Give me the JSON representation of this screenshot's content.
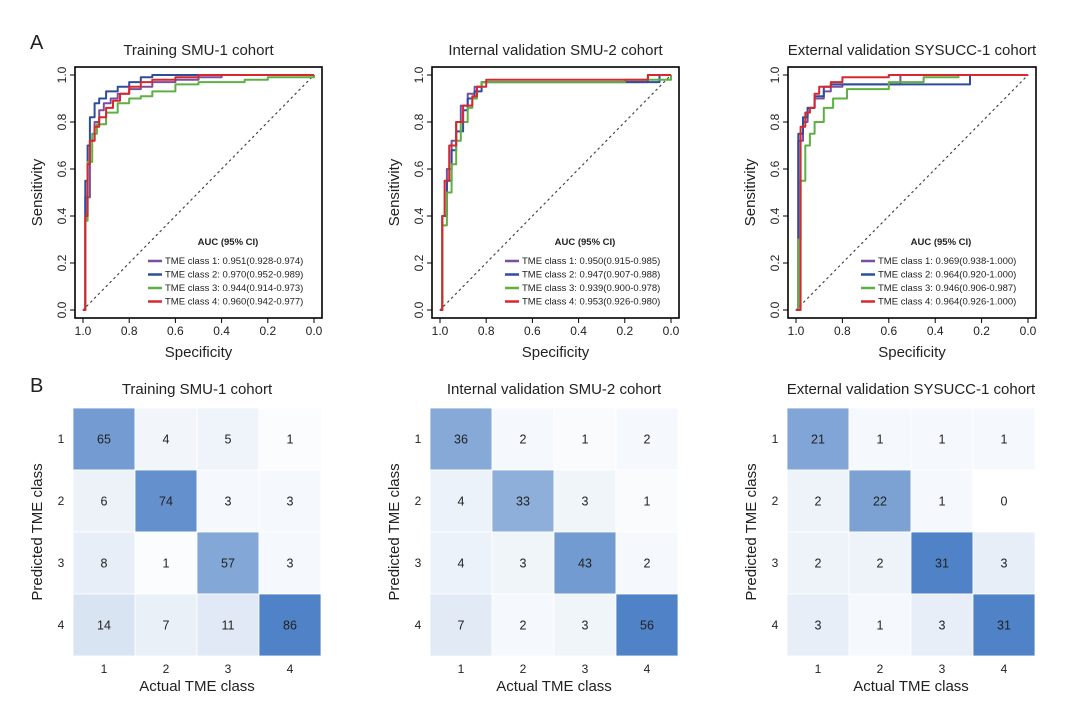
{
  "panel_labels": [
    "A",
    "B"
  ],
  "colors": {
    "class1": "#7b4f9d",
    "class2": "#2e4d9c",
    "class3": "#5fb043",
    "class4": "#d7282f",
    "diag": "#444444",
    "heat_low": "#ffffff",
    "heat_high": "#4f82c6"
  },
  "chart_data": [
    {
      "type": "line",
      "title": "Training SMU-1 cohort",
      "xlabel": "Specificity",
      "ylabel": "Sensitivity",
      "xlim": [
        1.0,
        0.0
      ],
      "ylim": [
        0.0,
        1.0
      ],
      "xticks": [
        "1.0",
        "0.8",
        "0.6",
        "0.4",
        "0.2",
        "0.0"
      ],
      "yticks": [
        "0.0",
        "0.2",
        "0.4",
        "0.6",
        "0.8",
        "1.0"
      ],
      "legend_title": "AUC (95% CI)",
      "series": [
        {
          "name": "TME class 1: 0.951(0.928-0.974)",
          "points": [
            [
              1,
              0
            ],
            [
              0.99,
              0.48
            ],
            [
              0.97,
              0.72
            ],
            [
              0.95,
              0.8
            ],
            [
              0.93,
              0.85
            ],
            [
              0.91,
              0.88
            ],
            [
              0.88,
              0.9
            ],
            [
              0.85,
              0.92
            ],
            [
              0.8,
              0.94
            ],
            [
              0.75,
              0.95
            ],
            [
              0.7,
              0.97
            ],
            [
              0.6,
              0.98
            ],
            [
              0.5,
              0.99
            ],
            [
              0.4,
              1
            ],
            [
              0.2,
              1
            ],
            [
              0,
              1
            ]
          ]
        },
        {
          "name": "TME class 2: 0.970(0.952-0.989)",
          "points": [
            [
              1,
              0
            ],
            [
              0.99,
              0.55
            ],
            [
              0.98,
              0.7
            ],
            [
              0.97,
              0.82
            ],
            [
              0.95,
              0.88
            ],
            [
              0.93,
              0.9
            ],
            [
              0.9,
              0.93
            ],
            [
              0.85,
              0.95
            ],
            [
              0.8,
              0.97
            ],
            [
              0.75,
              0.99
            ],
            [
              0.7,
              1
            ],
            [
              0.4,
              1
            ],
            [
              0,
              1
            ]
          ]
        },
        {
          "name": "TME class 3: 0.944(0.914-0.973)",
          "points": [
            [
              1,
              0
            ],
            [
              0.99,
              0.38
            ],
            [
              0.98,
              0.63
            ],
            [
              0.96,
              0.75
            ],
            [
              0.94,
              0.79
            ],
            [
              0.9,
              0.84
            ],
            [
              0.85,
              0.88
            ],
            [
              0.8,
              0.9
            ],
            [
              0.75,
              0.91
            ],
            [
              0.7,
              0.93
            ],
            [
              0.6,
              0.96
            ],
            [
              0.5,
              0.97
            ],
            [
              0.3,
              0.98
            ],
            [
              0.2,
              0.99
            ],
            [
              0,
              1
            ]
          ]
        },
        {
          "name": "TME class 4: 0.960(0.942-0.977)",
          "points": [
            [
              1,
              0
            ],
            [
              0.99,
              0.4
            ],
            [
              0.98,
              0.62
            ],
            [
              0.97,
              0.72
            ],
            [
              0.95,
              0.78
            ],
            [
              0.93,
              0.82
            ],
            [
              0.9,
              0.86
            ],
            [
              0.87,
              0.89
            ],
            [
              0.84,
              0.92
            ],
            [
              0.8,
              0.95
            ],
            [
              0.75,
              0.97
            ],
            [
              0.7,
              0.98
            ],
            [
              0.6,
              0.99
            ],
            [
              0.5,
              1
            ],
            [
              0,
              1
            ]
          ]
        }
      ]
    },
    {
      "type": "line",
      "title": "Internal validation SMU-2 cohort",
      "xlabel": "Specificity",
      "ylabel": "Sensitivity",
      "xlim": [
        1.0,
        0.0
      ],
      "ylim": [
        0.0,
        1.0
      ],
      "xticks": [
        "1.0",
        "0.8",
        "0.6",
        "0.4",
        "0.2",
        "0.0"
      ],
      "yticks": [
        "0.0",
        "0.2",
        "0.4",
        "0.6",
        "0.8",
        "1.0"
      ],
      "legend_title": "AUC (95% CI)",
      "series": [
        {
          "name": "TME class 1: 0.950(0.915-0.985)",
          "points": [
            [
              1,
              0
            ],
            [
              0.99,
              0.4
            ],
            [
              0.97,
              0.6
            ],
            [
              0.95,
              0.72
            ],
            [
              0.93,
              0.8
            ],
            [
              0.91,
              0.87
            ],
            [
              0.88,
              0.92
            ],
            [
              0.85,
              0.95
            ],
            [
              0.82,
              0.97
            ],
            [
              0.2,
              0.97
            ],
            [
              0.1,
              1
            ],
            [
              0,
              1
            ]
          ]
        },
        {
          "name": "TME class 2: 0.947(0.907-0.988)",
          "points": [
            [
              1,
              0
            ],
            [
              0.99,
              0.4
            ],
            [
              0.97,
              0.55
            ],
            [
              0.95,
              0.68
            ],
            [
              0.93,
              0.76
            ],
            [
              0.9,
              0.85
            ],
            [
              0.88,
              0.9
            ],
            [
              0.85,
              0.93
            ],
            [
              0.82,
              0.97
            ],
            [
              0.1,
              0.97
            ],
            [
              0.05,
              1
            ],
            [
              0,
              1
            ]
          ]
        },
        {
          "name": "TME class 3: 0.939(0.900-0.978)",
          "points": [
            [
              1,
              0
            ],
            [
              0.99,
              0.36
            ],
            [
              0.97,
              0.5
            ],
            [
              0.95,
              0.62
            ],
            [
              0.93,
              0.72
            ],
            [
              0.91,
              0.8
            ],
            [
              0.88,
              0.86
            ],
            [
              0.86,
              0.9
            ],
            [
              0.84,
              0.95
            ],
            [
              0.82,
              0.97
            ],
            [
              0.2,
              0.98
            ],
            [
              0,
              1
            ]
          ]
        },
        {
          "name": "TME class 4: 0.953(0.926-0.980)",
          "points": [
            [
              1,
              0
            ],
            [
              0.99,
              0.4
            ],
            [
              0.98,
              0.55
            ],
            [
              0.96,
              0.7
            ],
            [
              0.93,
              0.8
            ],
            [
              0.9,
              0.87
            ],
            [
              0.86,
              0.91
            ],
            [
              0.84,
              0.95
            ],
            [
              0.8,
              0.98
            ],
            [
              0.2,
              0.98
            ],
            [
              0.1,
              1
            ],
            [
              0,
              1
            ]
          ]
        }
      ]
    },
    {
      "type": "line",
      "title": "External validation SYSUCC-1 cohort",
      "xlabel": "Specificity",
      "ylabel": "Sensitivity",
      "xlim": [
        1.0,
        0.0
      ],
      "ylim": [
        0.0,
        1.0
      ],
      "xticks": [
        "1.0",
        "0.8",
        "0.6",
        "0.4",
        "0.2",
        "0.0"
      ],
      "yticks": [
        "0.0",
        "0.2",
        "0.4",
        "0.6",
        "0.8",
        "1.0"
      ],
      "legend_title": "AUC (95% CI)",
      "series": [
        {
          "name": "TME class 1: 0.969(0.938-1.000)",
          "points": [
            [
              1,
              0
            ],
            [
              0.99,
              0.72
            ],
            [
              0.97,
              0.8
            ],
            [
              0.95,
              0.86
            ],
            [
              0.92,
              0.9
            ],
            [
              0.88,
              0.93
            ],
            [
              0.85,
              0.95
            ],
            [
              0.8,
              0.96
            ],
            [
              0.6,
              0.96
            ],
            [
              0.55,
              1
            ],
            [
              0,
              1
            ]
          ]
        },
        {
          "name": "TME class 2: 0.964(0.920-1.000)",
          "points": [
            [
              1,
              0
            ],
            [
              0.99,
              0.75
            ],
            [
              0.97,
              0.82
            ],
            [
              0.95,
              0.86
            ],
            [
              0.92,
              0.91
            ],
            [
              0.88,
              0.95
            ],
            [
              0.85,
              0.96
            ],
            [
              0.3,
              0.96
            ],
            [
              0.25,
              1
            ],
            [
              0,
              1
            ]
          ]
        },
        {
          "name": "TME class 3: 0.946(0.906-0.987)",
          "points": [
            [
              1,
              0
            ],
            [
              0.99,
              0.3
            ],
            [
              0.98,
              0.55
            ],
            [
              0.96,
              0.7
            ],
            [
              0.94,
              0.75
            ],
            [
              0.92,
              0.8
            ],
            [
              0.88,
              0.86
            ],
            [
              0.84,
              0.9
            ],
            [
              0.78,
              0.94
            ],
            [
              0.6,
              0.97
            ],
            [
              0.45,
              0.99
            ],
            [
              0.3,
              1
            ],
            [
              0,
              1
            ]
          ]
        },
        {
          "name": "TME class 4: 0.964(0.926-1.000)",
          "points": [
            [
              1,
              0
            ],
            [
              0.99,
              0.0
            ],
            [
              0.98,
              0.78
            ],
            [
              0.96,
              0.84
            ],
            [
              0.94,
              0.86
            ],
            [
              0.92,
              0.92
            ],
            [
              0.9,
              0.95
            ],
            [
              0.85,
              0.97
            ],
            [
              0.8,
              0.99
            ],
            [
              0.6,
              1
            ],
            [
              0,
              1
            ]
          ]
        }
      ]
    },
    {
      "type": "heatmap",
      "title": "Training SMU-1 cohort",
      "xlabel": "Actual TME class",
      "ylabel": "Predicted TME class",
      "categories": [
        "1",
        "2",
        "3",
        "4"
      ],
      "values": [
        [
          65,
          4,
          5,
          1
        ],
        [
          6,
          74,
          3,
          3
        ],
        [
          8,
          1,
          57,
          3
        ],
        [
          14,
          7,
          11,
          86
        ]
      ]
    },
    {
      "type": "heatmap",
      "title": "Internal validation SMU-2 cohort",
      "xlabel": "Actual TME class",
      "ylabel": "Predicted TME class",
      "categories": [
        "1",
        "2",
        "3",
        "4"
      ],
      "values": [
        [
          36,
          2,
          1,
          2
        ],
        [
          4,
          33,
          3,
          1
        ],
        [
          4,
          3,
          43,
          2
        ],
        [
          7,
          2,
          3,
          56
        ]
      ]
    },
    {
      "type": "heatmap",
      "title": "External validation SYSUCC-1 cohort",
      "xlabel": "Actual TME class",
      "ylabel": "Predicted TME class",
      "categories": [
        "1",
        "2",
        "3",
        "4"
      ],
      "values": [
        [
          21,
          1,
          1,
          1
        ],
        [
          2,
          22,
          1,
          0
        ],
        [
          2,
          2,
          31,
          3
        ],
        [
          3,
          1,
          3,
          31
        ]
      ]
    }
  ]
}
